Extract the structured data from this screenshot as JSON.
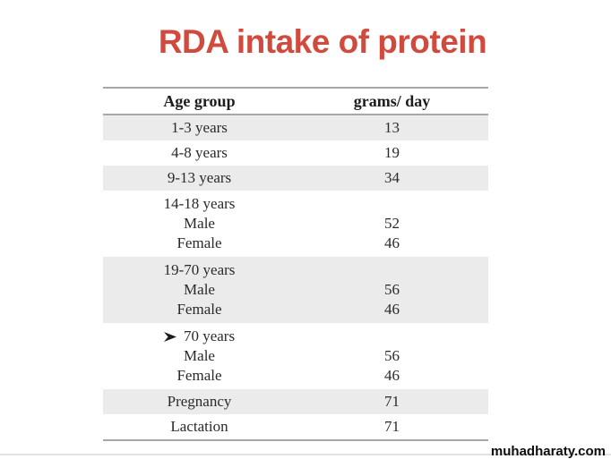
{
  "title": "RDA intake of protein",
  "watermark": "muhadharaty.com",
  "icons": {
    "arrow_bullet": "right-arrowhead-bullet"
  },
  "colors": {
    "title_red": "#d04b3e",
    "row_shade": "#ebebeb",
    "border_gray": "#a7a7a7",
    "text_dark": "#2a2a2a",
    "footer_line": "#e2e2e2",
    "watermark_black": "#0d0d0d"
  },
  "table": {
    "headers": [
      "Age group",
      "grams/ day"
    ],
    "rows": [
      {
        "shaded": true,
        "arrow": false,
        "lines": [
          {
            "label": "1-3 years",
            "value": "13"
          }
        ]
      },
      {
        "shaded": false,
        "arrow": false,
        "lines": [
          {
            "label": "4-8 years",
            "value": "19"
          }
        ]
      },
      {
        "shaded": true,
        "arrow": false,
        "lines": [
          {
            "label": "9-13 years",
            "value": "34"
          }
        ]
      },
      {
        "shaded": false,
        "arrow": false,
        "lines": [
          {
            "label": "14-18 years",
            "value": ""
          },
          {
            "label": "Male",
            "value": "52"
          },
          {
            "label": "Female",
            "value": "46"
          }
        ]
      },
      {
        "shaded": true,
        "arrow": false,
        "lines": [
          {
            "label": "19-70 years",
            "value": ""
          },
          {
            "label": "Male",
            "value": "56"
          },
          {
            "label": "Female",
            "value": "46"
          }
        ]
      },
      {
        "shaded": false,
        "arrow": true,
        "lines": [
          {
            "label": "70 years",
            "value": ""
          },
          {
            "label": "Male",
            "value": "56"
          },
          {
            "label": "Female",
            "value": "46"
          }
        ]
      },
      {
        "shaded": true,
        "arrow": false,
        "lines": [
          {
            "label": "Pregnancy",
            "value": "71"
          }
        ]
      },
      {
        "shaded": false,
        "arrow": false,
        "lines": [
          {
            "label": "Lactation",
            "value": "71"
          }
        ]
      }
    ]
  }
}
